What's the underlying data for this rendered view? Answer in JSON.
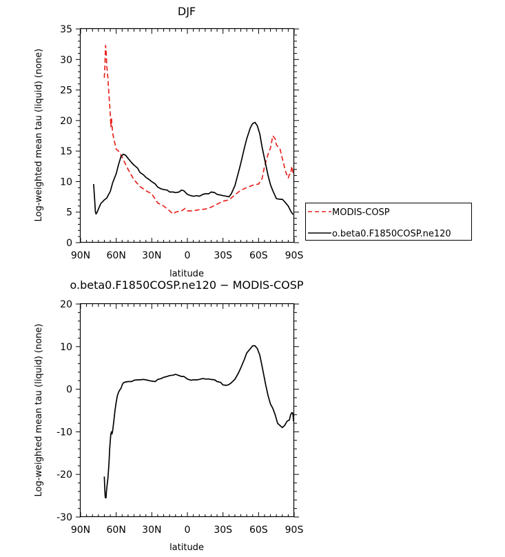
{
  "chart_data": [
    {
      "type": "line",
      "title": "DJF",
      "xlabel": "latitude",
      "ylabel": "Log-weighted mean tau (liquid) (none)",
      "x_reversed": true,
      "xlim": [
        90,
        -90
      ],
      "ylim": [
        0,
        35
      ],
      "xticks": [
        {
          "value": 90,
          "label": "90N"
        },
        {
          "value": 60,
          "label": "60N"
        },
        {
          "value": 30,
          "label": "30N"
        },
        {
          "value": 0,
          "label": "0"
        },
        {
          "value": -30,
          "label": "30S"
        },
        {
          "value": -60,
          "label": "60S"
        },
        {
          "value": -90,
          "label": "90S"
        }
      ],
      "yticks": [
        0,
        5,
        10,
        15,
        20,
        25,
        30,
        35
      ],
      "legend_position": "outside-right",
      "series": [
        {
          "name": "MODIS-COSP",
          "color": "#e8221d",
          "dash": "dashed",
          "x": [
            70,
            69.5,
            69,
            68.5,
            68,
            67,
            66,
            65,
            64.5,
            64,
            63,
            62,
            60,
            58,
            55,
            50,
            45,
            40,
            35,
            30,
            25,
            20,
            15,
            12,
            10,
            5,
            2,
            0,
            -5,
            -10,
            -15,
            -20,
            -25,
            -30,
            -35,
            -40,
            -45,
            -50,
            -55,
            -60,
            -63,
            -65,
            -68,
            -70,
            -72,
            -74,
            -75,
            -76,
            -78,
            -80,
            -83,
            -85,
            -86,
            -87,
            -88,
            -89,
            -89.5
          ],
          "y": [
            27,
            29,
            32.3,
            31.5,
            29,
            27,
            24,
            21,
            19,
            20.3,
            18,
            17,
            15.3,
            15,
            14,
            12,
            10.3,
            9.2,
            8.5,
            8,
            6.5,
            6,
            5.2,
            4.7,
            5,
            5.2,
            5.6,
            5.2,
            5.2,
            5.4,
            5.5,
            5.8,
            6.3,
            6.8,
            7,
            7.8,
            8.6,
            9,
            9.4,
            9.6,
            10.5,
            12.5,
            14.5,
            15.5,
            17.5,
            17,
            16,
            15.8,
            15.4,
            13.8,
            11.5,
            10.6,
            11.2,
            11.2,
            12.5,
            11.5,
            11.7
          ]
        },
        {
          "name": "o.beta0.F1850COSP.ne120",
          "color": "#000000",
          "dash": "solid",
          "x": [
            79,
            78,
            77.5,
            77,
            76,
            75,
            73,
            71,
            70,
            68,
            65,
            63,
            60,
            58,
            56,
            54,
            52,
            50,
            47,
            45,
            42,
            40,
            37,
            35,
            32,
            30,
            27,
            25,
            22,
            20,
            17,
            15,
            12,
            10,
            7,
            5,
            3,
            0,
            -3,
            -5,
            -8,
            -10,
            -13,
            -15,
            -18,
            -20,
            -23,
            -25,
            -28,
            -30,
            -33,
            -35,
            -37,
            -40,
            -43,
            -45,
            -48,
            -50,
            -53,
            -55,
            -57,
            -59,
            -61,
            -63,
            -66,
            -68,
            -70,
            -72,
            -75,
            -78,
            -80,
            -82,
            -85,
            -87,
            -89
          ],
          "y": [
            9.6,
            6.5,
            5,
            4.7,
            5,
            5.5,
            6.4,
            6.8,
            7,
            7.3,
            8.4,
            9.8,
            11.3,
            12.8,
            14.1,
            14.5,
            14.3,
            13.8,
            13.1,
            12.7,
            12.2,
            11.5,
            11.1,
            10.7,
            10.3,
            10,
            9.6,
            9.1,
            8.8,
            8.7,
            8.6,
            8.3,
            8.3,
            8.2,
            8.3,
            8.6,
            8.5,
            7.9,
            7.7,
            7.6,
            7.7,
            7.6,
            7.9,
            8,
            8,
            8.3,
            8.2,
            7.9,
            7.8,
            7.7,
            7.6,
            7.5,
            8.0,
            9.3,
            11.5,
            13.0,
            15.5,
            17.0,
            18.8,
            19.5,
            19.7,
            19.1,
            17.8,
            15.6,
            12.8,
            11,
            9.5,
            8.5,
            7.2,
            7.1,
            7.1,
            6.7,
            6.0,
            5.2,
            4.6
          ]
        }
      ]
    },
    {
      "type": "line",
      "title": "o.beta0.F1850COSP.ne120 − MODIS-COSP",
      "xlabel": "latitude",
      "ylabel": "Log-weighted mean tau (liquid) (none)",
      "x_reversed": true,
      "xlim": [
        90,
        -90
      ],
      "ylim": [
        -30,
        20
      ],
      "xticks": [
        {
          "value": 90,
          "label": "90N"
        },
        {
          "value": 60,
          "label": "60N"
        },
        {
          "value": 30,
          "label": "30N"
        },
        {
          "value": 0,
          "label": "0"
        },
        {
          "value": -30,
          "label": "30S"
        },
        {
          "value": -60,
          "label": "60S"
        },
        {
          "value": -90,
          "label": "90S"
        }
      ],
      "yticks": [
        -30,
        -20,
        -10,
        0,
        10,
        20
      ],
      "series": [
        {
          "name": "",
          "color": "#000000",
          "dash": "solid",
          "x": [
            70,
            69.7,
            69.3,
            69,
            68.6,
            68.2,
            67.5,
            67,
            66.5,
            66,
            65.5,
            65,
            64.5,
            64,
            63.5,
            63,
            62,
            61,
            60,
            59,
            58,
            57,
            56,
            55,
            54,
            52,
            50,
            47,
            45,
            42,
            40,
            37,
            35,
            32,
            30,
            27,
            25,
            22,
            20,
            17,
            15,
            12,
            10,
            8,
            5,
            3,
            0,
            -3,
            -5,
            -8,
            -10,
            -13,
            -15,
            -18,
            -20,
            -23,
            -25,
            -28,
            -30,
            -33,
            -35,
            -37,
            -40,
            -43,
            -45,
            -48,
            -50,
            -53,
            -55,
            -57,
            -59,
            -61,
            -63,
            -66,
            -68,
            -70,
            -72,
            -74,
            -76,
            -78,
            -80,
            -82,
            -84,
            -86,
            -87,
            -88,
            -88.5,
            -89,
            -89.5
          ],
          "y": [
            -20.5,
            -23,
            -25.3,
            -25.5,
            -25.5,
            -24,
            -22,
            -21,
            -19,
            -17,
            -14,
            -12,
            -10.5,
            -10,
            -10.5,
            -9.8,
            -7.5,
            -5,
            -3,
            -1.5,
            -0.7,
            -0.2,
            0.2,
            1.0,
            1.5,
            1.7,
            1.8,
            1.8,
            2.1,
            2.2,
            2.2,
            2.3,
            2.2,
            2.0,
            1.9,
            1.8,
            2.3,
            2.5,
            2.8,
            3.0,
            3.2,
            3.3,
            3.5,
            3.3,
            3.0,
            3.0,
            2.4,
            2.1,
            2.2,
            2.2,
            2.3,
            2.5,
            2.4,
            2.4,
            2.3,
            2.2,
            1.8,
            1.6,
            1.0,
            0.9,
            1.1,
            1.5,
            2.3,
            3.8,
            5.0,
            7.0,
            8.5,
            9.5,
            10.2,
            10.2,
            9.5,
            8.0,
            5.3,
            1.0,
            -1.5,
            -3.5,
            -4.5,
            -6.0,
            -8.0,
            -8.5,
            -9.0,
            -8.5,
            -7.5,
            -7.2,
            -6.0,
            -5.5,
            -5.5,
            -6.0,
            -7.5
          ]
        }
      ]
    }
  ]
}
